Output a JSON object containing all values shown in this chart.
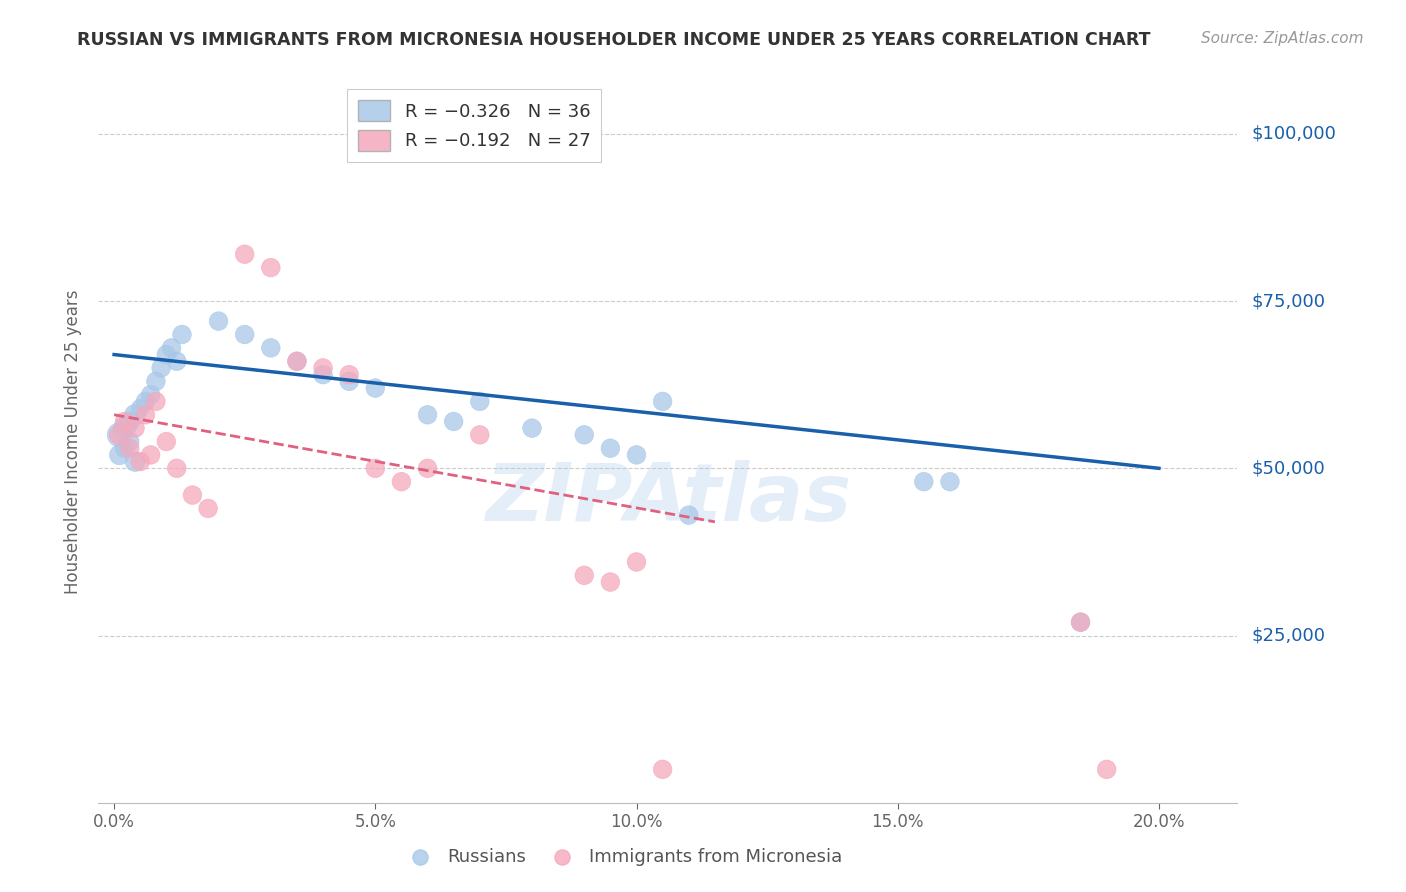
{
  "title": "RUSSIAN VS IMMIGRANTS FROM MICRONESIA HOUSEHOLDER INCOME UNDER 25 YEARS CORRELATION CHART",
  "source": "Source: ZipAtlas.com",
  "ylabel": "Householder Income Under 25 years",
  "xlabel_ticks": [
    "0.0%",
    "5.0%",
    "10.0%",
    "15.0%",
    "20.0%"
  ],
  "xlabel_vals": [
    0.0,
    0.05,
    0.1,
    0.15,
    0.2
  ],
  "ytick_labels": [
    "$25,000",
    "$50,000",
    "$75,000",
    "$100,000"
  ],
  "ytick_vals": [
    25000,
    50000,
    75000,
    100000
  ],
  "ylim": [
    0,
    108000
  ],
  "xlim": [
    -0.003,
    0.215
  ],
  "russian_color": "#a8c8e8",
  "micronesia_color": "#f5a8bc",
  "trend_russian_color": "#1a5faa",
  "trend_micronesia_color": "#e06080",
  "watermark": "ZIPAtlas",
  "russians_x": [
    0.001,
    0.001,
    0.002,
    0.002,
    0.003,
    0.003,
    0.004,
    0.004,
    0.005,
    0.006,
    0.007,
    0.008,
    0.009,
    0.01,
    0.011,
    0.012,
    0.013,
    0.02,
    0.025,
    0.03,
    0.035,
    0.04,
    0.045,
    0.05,
    0.06,
    0.065,
    0.07,
    0.08,
    0.09,
    0.095,
    0.1,
    0.105,
    0.11,
    0.155,
    0.16,
    0.185
  ],
  "russians_y": [
    55000,
    52000,
    56000,
    53000,
    57000,
    54000,
    58000,
    51000,
    59000,
    60000,
    61000,
    63000,
    65000,
    67000,
    68000,
    66000,
    70000,
    72000,
    70000,
    68000,
    66000,
    64000,
    63000,
    62000,
    58000,
    57000,
    60000,
    56000,
    55000,
    53000,
    52000,
    60000,
    43000,
    48000,
    48000,
    27000
  ],
  "russians_size": [
    300,
    200,
    250,
    180,
    200,
    180,
    220,
    200,
    160,
    180,
    180,
    180,
    180,
    180,
    180,
    180,
    180,
    180,
    180,
    180,
    180,
    180,
    180,
    180,
    180,
    180,
    180,
    180,
    180,
    180,
    180,
    180,
    180,
    180,
    180,
    180
  ],
  "micronesia_x": [
    0.001,
    0.002,
    0.003,
    0.004,
    0.005,
    0.006,
    0.007,
    0.008,
    0.01,
    0.012,
    0.015,
    0.018,
    0.025,
    0.03,
    0.035,
    0.04,
    0.045,
    0.05,
    0.055,
    0.06,
    0.07,
    0.09,
    0.095,
    0.1,
    0.105,
    0.185,
    0.19
  ],
  "micronesia_y": [
    55000,
    57000,
    53000,
    56000,
    51000,
    58000,
    52000,
    60000,
    54000,
    50000,
    46000,
    44000,
    82000,
    80000,
    66000,
    65000,
    64000,
    50000,
    48000,
    50000,
    55000,
    34000,
    33000,
    36000,
    5000,
    27000,
    5000
  ],
  "micronesia_size": [
    200,
    180,
    180,
    180,
    180,
    180,
    180,
    180,
    180,
    180,
    180,
    180,
    180,
    180,
    180,
    180,
    180,
    180,
    180,
    180,
    180,
    180,
    180,
    180,
    180,
    180,
    180
  ],
  "trend_russian_x0": 0.0,
  "trend_russian_y0": 67000,
  "trend_russian_x1": 0.2,
  "trend_russian_y1": 50000,
  "trend_micronesia_x0": 0.0,
  "trend_micronesia_y0": 58000,
  "trend_micronesia_x1": 0.115,
  "trend_micronesia_y1": 42000
}
